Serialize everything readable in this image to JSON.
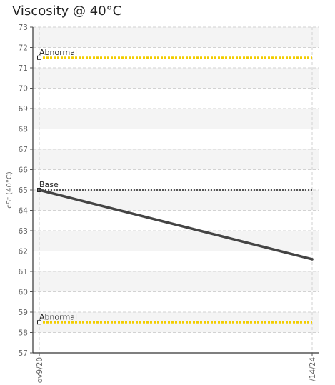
{
  "chart_data": {
    "type": "line",
    "title": "Viscosity @ 40°C",
    "ylabel": "cSt (40°C)",
    "xlabel": "",
    "ylim": [
      57,
      73
    ],
    "yticks": [
      57,
      58,
      59,
      60,
      61,
      62,
      63,
      64,
      65,
      66,
      67,
      68,
      69,
      70,
      71,
      72,
      73
    ],
    "x_tick_labels": [
      "ov9/20",
      "/14/24"
    ],
    "grid": true,
    "series": [
      {
        "values": [
          65.0,
          61.6
        ],
        "color": "#444444"
      }
    ],
    "reference_lines": [
      {
        "label": "Abnormal",
        "value": 71.5,
        "color": "#f2cd00"
      },
      {
        "label": "Base",
        "value": 65.0,
        "color": "#222222"
      },
      {
        "label": "Abnormal",
        "value": 58.5,
        "color": "#f2cd00"
      }
    ]
  }
}
